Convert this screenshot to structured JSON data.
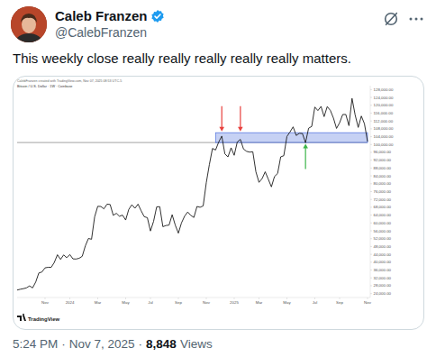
{
  "tweet": {
    "author_name": "Caleb Franzen",
    "handle": "@CalebFranzen",
    "text": "This weekly close really really really really really matters.",
    "time": "5:24 PM",
    "date": "Nov 7, 2025",
    "separator": "·",
    "views": "8,848",
    "views_label": "Views"
  },
  "chart_data": {
    "type": "line",
    "title": "Bitcoin / U.S. Dollar · 1W · Coinbase",
    "subtitle": "CalebFranzen created with TradingView.com, Nov 07, 2025 08:53 UTC-5",
    "source": "TradingView",
    "color": "#1a1a1a",
    "grid": false,
    "categories": [
      null,
      null,
      null,
      null,
      null,
      null,
      null,
      null,
      null,
      "Nov",
      null,
      null,
      null,
      null,
      null,
      null,
      null,
      "2024",
      null,
      null,
      null,
      null,
      null,
      null,
      null,
      null,
      "Mar",
      null,
      null,
      null,
      null,
      null,
      null,
      null,
      null,
      "May",
      null,
      null,
      null,
      null,
      null,
      null,
      null,
      "Jul",
      null,
      null,
      null,
      null,
      null,
      null,
      null,
      null,
      "Sep",
      null,
      null,
      null,
      null,
      null,
      null,
      null,
      null,
      "Nov",
      null,
      null,
      null,
      null,
      null,
      null,
      null,
      null,
      "2025",
      null,
      null,
      null,
      null,
      null,
      null,
      null,
      "Mar",
      null,
      null,
      null,
      null,
      null,
      null,
      null,
      null,
      "May",
      null,
      null,
      null,
      null,
      null,
      null,
      null,
      null,
      "Jul",
      null,
      null,
      null,
      null,
      null,
      null,
      null,
      "Sep",
      null,
      null,
      null,
      null,
      null,
      null,
      null,
      null,
      "Nov"
    ],
    "values": [
      25800,
      26200,
      26500,
      26900,
      27900,
      26900,
      29900,
      34500,
      35000,
      37100,
      37400,
      37400,
      39900,
      43800,
      41400,
      43700,
      42300,
      43900,
      41700,
      41600,
      42000,
      43000,
      48300,
      52100,
      51700,
      63100,
      68500,
      68400,
      67200,
      69600,
      69400,
      63900,
      64900,
      63400,
      64000,
      61500,
      66900,
      69300,
      67500,
      69600,
      66200,
      63200,
      62700,
      55900,
      60800,
      68200,
      68300,
      58100,
      58700,
      58900,
      64200,
      58900,
      54800,
      60000,
      63400,
      65600,
      63900,
      62800,
      68400,
      68000,
      68700,
      80500,
      89800,
      98000,
      97200,
      101200,
      104300,
      95200,
      93700,
      98300,
      94500,
      101300,
      102600,
      97700,
      96500,
      96100,
      96300,
      86100,
      80700,
      82600,
      86100,
      82300,
      78400,
      83700,
      85200,
      93700,
      94300,
      104100,
      106400,
      109000,
      104600,
      105700,
      105600,
      100900,
      108300,
      109200,
      119100,
      117300,
      119400,
      114200,
      119300,
      117400,
      113500,
      108200,
      111100,
      115300,
      115300,
      109600,
      123500,
      115100,
      108700,
      114500,
      110600,
      101500
    ],
    "ylim": [
      22000,
      130000
    ],
    "yticks": [
      {
        "value": 24000,
        "label": "24,000.00"
      },
      {
        "value": 28000,
        "label": "28,000.00"
      },
      {
        "value": 32000,
        "label": "32,000.00"
      },
      {
        "value": 36000,
        "label": "36,000.00"
      },
      {
        "value": 40000,
        "label": "40,000.00"
      },
      {
        "value": 44000,
        "label": "44,000.00"
      },
      {
        "value": 48000,
        "label": "48,000.00"
      },
      {
        "value": 52000,
        "label": "52,000.00"
      },
      {
        "value": 56000,
        "label": "56,000.00"
      },
      {
        "value": 60000,
        "label": "60,000.00"
      },
      {
        "value": 64000,
        "label": "64,000.00"
      },
      {
        "value": 68000,
        "label": "68,000.00"
      },
      {
        "value": 72000,
        "label": "72,000.00"
      },
      {
        "value": 76000,
        "label": "76,000.00"
      },
      {
        "value": 80000,
        "label": "80,000.00"
      },
      {
        "value": 84000,
        "label": "84,000.00"
      },
      {
        "value": 88000,
        "label": "88,000.00"
      },
      {
        "value": 92000,
        "label": "92,000.00"
      },
      {
        "value": 96000,
        "label": "96,000.00"
      },
      {
        "value": 100000,
        "label": "100,000.00"
      },
      {
        "value": 104000,
        "label": "104,000.00"
      },
      {
        "value": 108000,
        "label": "108,000.00"
      },
      {
        "value": 112000,
        "label": "112,000.00"
      },
      {
        "value": 116000,
        "label": "116,000.00"
      },
      {
        "value": 120000,
        "label": "120,000.00"
      },
      {
        "value": 124000,
        "label": "124,000.00"
      },
      {
        "value": 128000,
        "label": "128,000.00"
      }
    ],
    "zone": {
      "from": 64,
      "low": 101000,
      "high": 106000,
      "color": "#5b7be0"
    },
    "signals": [
      {
        "index": 66,
        "direction": "down",
        "color": "#e8403d"
      },
      {
        "index": 72,
        "direction": "down",
        "color": "#e8403d"
      },
      {
        "index": 93,
        "direction": "up",
        "color": "#3bb54a"
      }
    ]
  }
}
